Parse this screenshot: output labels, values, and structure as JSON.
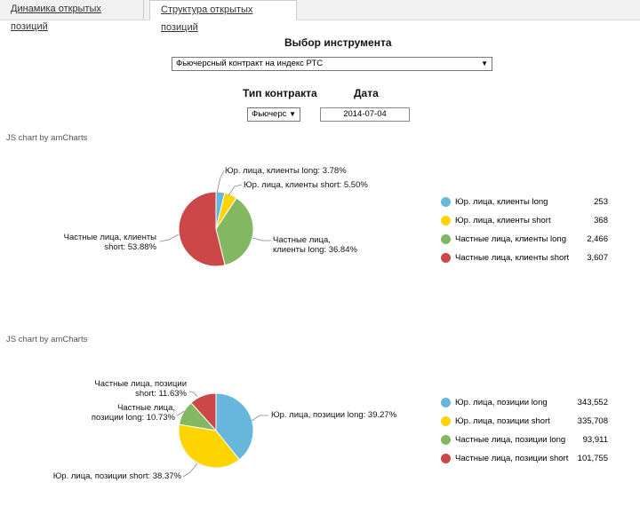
{
  "tabs": [
    {
      "label": "Динамика открытых позиций"
    },
    {
      "label": "Структура открытых позиций"
    }
  ],
  "instrument": {
    "heading": "Выбор инструмента",
    "selected": "Фьючерсный контракт на индекс РТС"
  },
  "contract_type": {
    "heading": "Тип контракта",
    "selected": "Фьючерс"
  },
  "date": {
    "heading": "Дата",
    "value": "2014-07-04"
  },
  "charts": [
    {
      "credit": "JS chart by amCharts"
    },
    {
      "credit": "JS chart by amCharts"
    }
  ],
  "chart_data": [
    {
      "type": "pie",
      "slices": [
        {
          "name": "Юр. лица, клиенты long",
          "value": 253,
          "percent_label": "Юр. лица, клиенты long: 3.78%",
          "color": "#67b7dc"
        },
        {
          "name": "Юр. лица, клиенты short",
          "value": 368,
          "percent_label": "Юр. лица, клиенты short: 5.50%",
          "color": "#fdd400"
        },
        {
          "name": "Частные лица, клиенты long",
          "value": 2466,
          "percent_label_lines": [
            "Частные лица,",
            "клиенты long: 36.84%"
          ],
          "color": "#84b761"
        },
        {
          "name": "Частные лица, клиенты short",
          "value": 3607,
          "percent_label_lines": [
            "Частные лица, клиенты",
            "short: 53.88%"
          ],
          "color": "#cc4748"
        }
      ],
      "legend": [
        {
          "label": "Юр. лица, клиенты long",
          "value": "253"
        },
        {
          "label": "Юр. лица, клиенты short",
          "value": "368"
        },
        {
          "label": "Частные лица, клиенты long",
          "value": "2,466"
        },
        {
          "label": "Частные лица, клиенты short",
          "value": "3,607"
        }
      ]
    },
    {
      "type": "pie",
      "slices": [
        {
          "name": "Юр. лица, позиции long",
          "value": 343552,
          "percent_label_lines": [
            "Юр. лица, позиции long: 39.27%"
          ],
          "color": "#67b7dc"
        },
        {
          "name": "Юр. лица, позиции short",
          "value": 335708,
          "percent_label_lines": [
            "Юр. лица, позиции short: 38.37%"
          ],
          "color": "#fdd400"
        },
        {
          "name": "Частные лица, позиции long",
          "value": 93911,
          "percent_label_lines": [
            "Частные лица,",
            "позиции long: 10.73%"
          ],
          "color": "#84b761"
        },
        {
          "name": "Частные лица, позиции short",
          "value": 101755,
          "percent_label_lines": [
            "Частные лица, позиции",
            "short: 11.63%"
          ],
          "color": "#cc4748"
        }
      ],
      "legend": [
        {
          "label": "Юр. лица, позиции long",
          "value": "343,552"
        },
        {
          "label": "Юр. лица, позиции short",
          "value": "335,708"
        },
        {
          "label": "Частные лица, позиции long",
          "value": "93,911"
        },
        {
          "label": "Частные лица, позиции short",
          "value": "101,755"
        }
      ]
    }
  ]
}
